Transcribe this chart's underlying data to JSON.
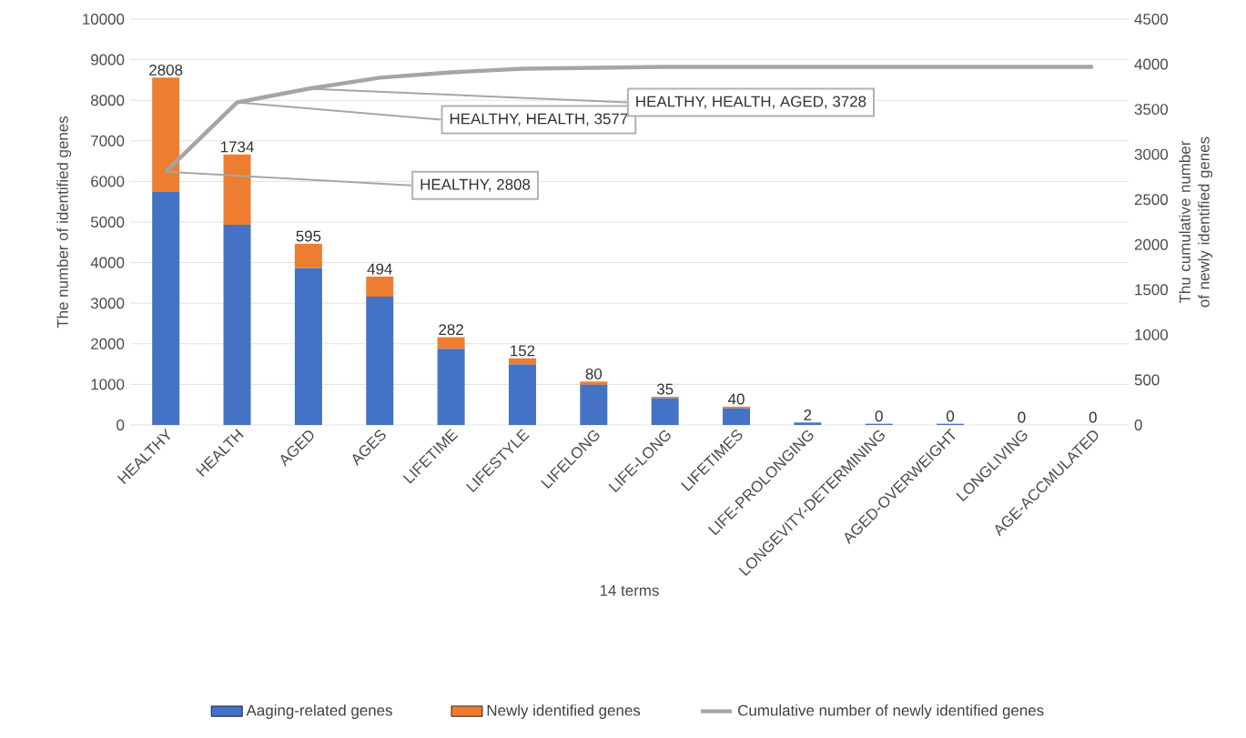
{
  "chart_data": {
    "type": "bar",
    "stacked": true,
    "categories": [
      "HEALTHY",
      "HEALTH",
      "AGED",
      "AGES",
      "LIFETIME",
      "LIFESTYLE",
      "LIFELONG",
      "LIFE-LONG",
      "LIFETIMES",
      "LIFE-PROLONGING",
      "LONGEVITY-DETERMINING",
      "AGED-OVERWEIGHT",
      "LONGLIVING",
      "AGE-ACCMULATED"
    ],
    "series": [
      {
        "name": "Aaging-related genes",
        "color": "#4472c4",
        "values": [
          5750,
          4930,
          3870,
          3160,
          1880,
          1490,
          990,
          660,
          410,
          60,
          30,
          30,
          0,
          0
        ]
      },
      {
        "name": "Newly identified genes",
        "color": "#ed7d31",
        "values": [
          2808,
          1734,
          595,
          494,
          282,
          152,
          80,
          35,
          40,
          2,
          0,
          0,
          0,
          0
        ],
        "value_labels": [
          "2808",
          "1734",
          "595",
          "494",
          "282",
          "152",
          "80",
          "35",
          "40",
          "2",
          "0",
          "0",
          "0",
          "0"
        ]
      },
      {
        "name": "Cumulative number of newly identified genes",
        "type": "line",
        "axis": "y2",
        "color": "#a5a5a5",
        "values": [
          2808,
          3577,
          3728,
          3850,
          3910,
          3950,
          3960,
          3970,
          3970,
          3970,
          3970,
          3970,
          3970,
          3970
        ],
        "value_labels": [
          "HEALTHY, 2808",
          "HEALTHY, HEALTH, 3577",
          "HEALTHY, HEALTH, AGED, 3728",
          null,
          null,
          null,
          null,
          null,
          null,
          null,
          null,
          null,
          null,
          null
        ]
      }
    ],
    "xlabel": "14 terms",
    "ylabel": "The number of identified genes",
    "y2label": "Thu cumulative number of newly identified genes",
    "ylim": [
      0,
      10000
    ],
    "yticks": [
      0,
      1000,
      2000,
      3000,
      4000,
      5000,
      6000,
      7000,
      8000,
      9000,
      10000
    ],
    "y2lim": [
      0,
      4500
    ],
    "y2ticks": [
      0,
      500,
      1000,
      1500,
      2000,
      2500,
      3000,
      3500,
      4000,
      4500
    ],
    "grid": "y",
    "legend": "bottom"
  }
}
